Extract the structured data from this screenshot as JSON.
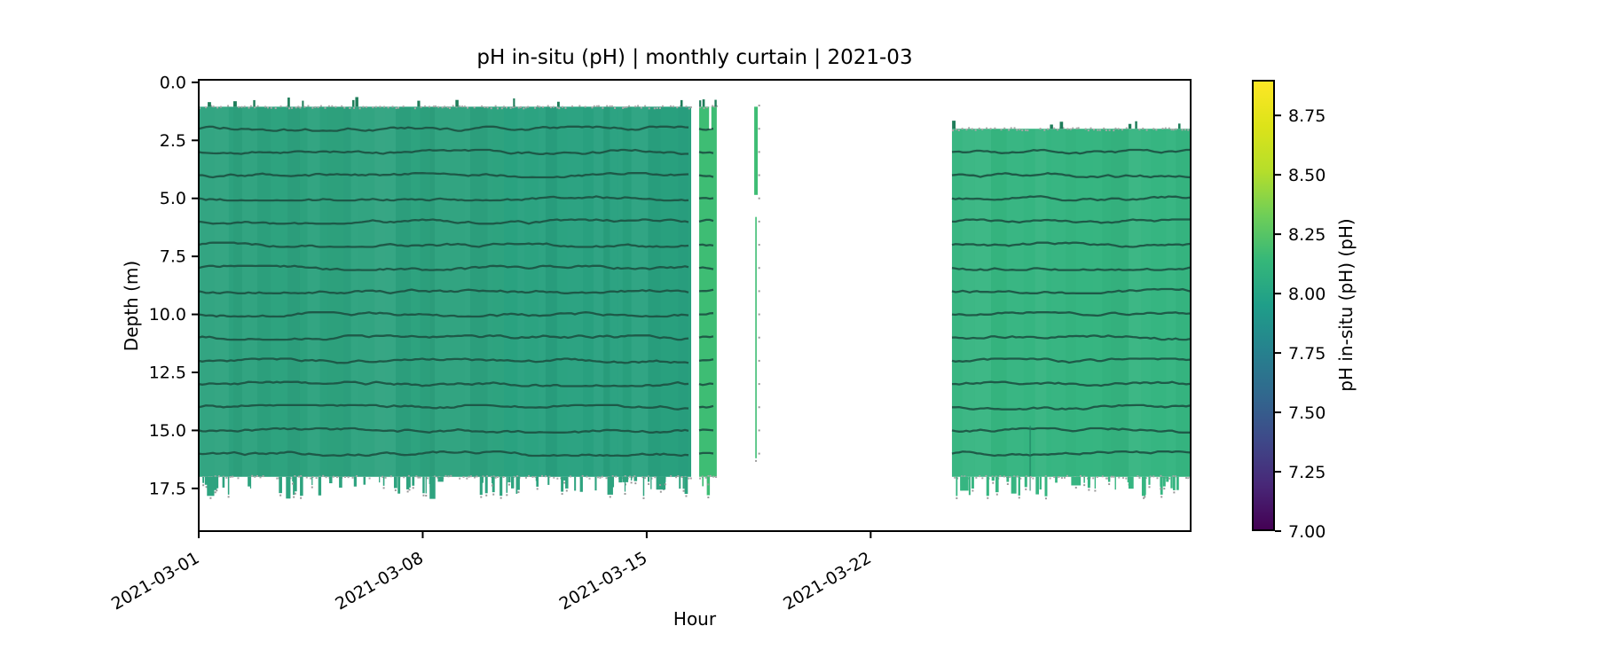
{
  "chart_data": {
    "type": "heatmap",
    "subtype": "time-depth curtain",
    "title": "pH in-situ (pH) | monthly curtain | 2021-03",
    "xlabel": "Hour",
    "ylabel": "Depth (m)",
    "grid": false,
    "x_domain_days": [
      0,
      31
    ],
    "x_ticks": [
      {
        "day": 0,
        "label": "2021-03-01"
      },
      {
        "day": 7,
        "label": "2021-03-08"
      },
      {
        "day": 14,
        "label": "2021-03-15"
      },
      {
        "day": 21,
        "label": "2021-03-22"
      }
    ],
    "x_tick_rotation_deg": -30,
    "y_domain_m": [
      -0.11,
      19.34
    ],
    "y_ticks": [
      "0.0",
      "2.5",
      "5.0",
      "7.5",
      "10.0",
      "12.5",
      "15.0",
      "17.5"
    ],
    "sensor_line_depths_m": [
      2,
      3,
      4,
      5,
      6,
      7,
      8,
      9,
      10,
      11,
      12,
      13,
      14,
      15,
      16
    ],
    "colorbar": {
      "label": "pH in-situ (pH) (pH)",
      "vmin": 7.0,
      "vmax": 8.9,
      "ticks": [
        "8.75",
        "8.50",
        "8.25",
        "8.00",
        "7.75",
        "7.50",
        "7.25",
        "7.00"
      ],
      "colormap": "viridis",
      "stops": [
        [
          0,
          "#440154"
        ],
        [
          10,
          "#482878"
        ],
        [
          20,
          "#3e4989"
        ],
        [
          30,
          "#31688e"
        ],
        [
          40,
          "#26828e"
        ],
        [
          50,
          "#1f9e89"
        ],
        [
          60,
          "#35b779"
        ],
        [
          70,
          "#6ece58"
        ],
        [
          80,
          "#b5de2b"
        ],
        [
          90,
          "#dce319"
        ],
        [
          100,
          "#fde725"
        ]
      ]
    },
    "segments": [
      {
        "name": "deployment-1",
        "start_day": 0.0,
        "end_day": 15.39,
        "top_m": 1.05,
        "bottom_m": 17.0,
        "drip_max_m": 17.95,
        "ph_mean": 8.08,
        "fill": "#2ea37f",
        "line_color": "#1c5243",
        "first_line_m": 2,
        "shade_right": true
      },
      {
        "name": "deployment-2-short",
        "start_day": 15.64,
        "end_day": 16.19,
        "top_m": 1.05,
        "bottom_m": 17.0,
        "drip_max_m": 17.95,
        "ph_mean": 8.22,
        "fill": "#3ebd74",
        "line_color": "#1c5243",
        "first_line_m": 2,
        "notch": {
          "start_day": 15.95,
          "end_day": 16.02,
          "bottom_m": 2.0
        }
      },
      {
        "name": "profile-strip",
        "style": "thin",
        "start_day": 17.36,
        "end_day": 17.47,
        "top_m": 1.05,
        "bottom_m": 16.2,
        "ph_mean": 8.22,
        "fill": "#3ebd74",
        "line_color": "#1c5243",
        "upper_bar_m": [
          1.05,
          4.85
        ],
        "lower_line_m": [
          5.8,
          16.2
        ]
      },
      {
        "name": "deployment-3",
        "start_day": 23.54,
        "end_day": 31.0,
        "top_m": 2.0,
        "bottom_m": 17.0,
        "drip_max_m": 17.95,
        "ph_mean": 8.16,
        "fill": "#36b581",
        "line_color": "#1c5243",
        "first_line_m": 3,
        "artifact_line": {
          "day": 25.96,
          "top_m": 14.8,
          "bottom_m": 17.6
        }
      }
    ]
  }
}
